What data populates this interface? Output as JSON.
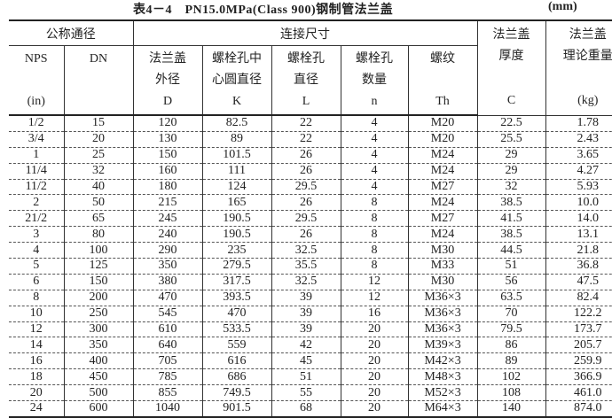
{
  "title": "表4－4　PN15.0MPa(Class 900)钢制管法兰盖",
  "unit": "(mm)",
  "header": {
    "group_nominal": "公称通径",
    "group_connection": "连接尺寸",
    "thickness": [
      "法兰盖",
      "厚度",
      "C"
    ],
    "weight": [
      "法兰盖",
      "理论重量",
      "(kg)"
    ],
    "nps": [
      "NPS",
      "(in)"
    ],
    "dn": "DN",
    "d": [
      "法兰盖",
      "外径",
      "D"
    ],
    "k": [
      "螺栓孔中",
      "心圆直径",
      "K"
    ],
    "l": [
      "螺栓孔",
      "直径",
      "L"
    ],
    "n": [
      "螺栓孔",
      "数量",
      "n"
    ],
    "th": [
      "螺纹",
      "Th"
    ]
  },
  "rows": [
    [
      "1/2",
      "15",
      "120",
      "82.5",
      "22",
      "4",
      "M20",
      "22.5",
      "1.78"
    ],
    [
      "3/4",
      "20",
      "130",
      "89",
      "22",
      "4",
      "M20",
      "25.5",
      "2.43"
    ],
    [
      "1",
      "25",
      "150",
      "101.5",
      "26",
      "4",
      "M24",
      "29",
      "3.65"
    ],
    [
      "11/4",
      "32",
      "160",
      "111",
      "26",
      "4",
      "M24",
      "29",
      "4.27"
    ],
    [
      "11/2",
      "40",
      "180",
      "124",
      "29.5",
      "4",
      "M27",
      "32",
      "5.93"
    ],
    [
      "2",
      "50",
      "215",
      "165",
      "26",
      "8",
      "M24",
      "38.5",
      "10.0"
    ],
    [
      "21/2",
      "65",
      "245",
      "190.5",
      "29.5",
      "8",
      "M27",
      "41.5",
      "14.0"
    ],
    [
      "3",
      "80",
      "240",
      "190.5",
      "26",
      "8",
      "M24",
      "38.5",
      "13.1"
    ],
    [
      "4",
      "100",
      "290",
      "235",
      "32.5",
      "8",
      "M30",
      "44.5",
      "21.8"
    ],
    [
      "5",
      "125",
      "350",
      "279.5",
      "35.5",
      "8",
      "M33",
      "51",
      "36.8"
    ],
    [
      "6",
      "150",
      "380",
      "317.5",
      "32.5",
      "12",
      "M30",
      "56",
      "47.5"
    ],
    [
      "8",
      "200",
      "470",
      "393.5",
      "39",
      "12",
      "M36×3",
      "63.5",
      "82.4"
    ],
    [
      "10",
      "250",
      "545",
      "470",
      "39",
      "16",
      "M36×3",
      "70",
      "122.2"
    ],
    [
      "12",
      "300",
      "610",
      "533.5",
      "39",
      "20",
      "M36×3",
      "79.5",
      "173.7"
    ],
    [
      "14",
      "350",
      "640",
      "559",
      "42",
      "20",
      "M39×3",
      "86",
      "205.7"
    ],
    [
      "16",
      "400",
      "705",
      "616",
      "45",
      "20",
      "M42×3",
      "89",
      "259.9"
    ],
    [
      "18",
      "450",
      "785",
      "686",
      "51",
      "20",
      "M48×3",
      "102",
      "366.9"
    ],
    [
      "20",
      "500",
      "855",
      "749.5",
      "55",
      "20",
      "M52×3",
      "108",
      "461.0"
    ],
    [
      "24",
      "600",
      "1040",
      "901.5",
      "68",
      "20",
      "M64×3",
      "140",
      "874.0"
    ]
  ]
}
